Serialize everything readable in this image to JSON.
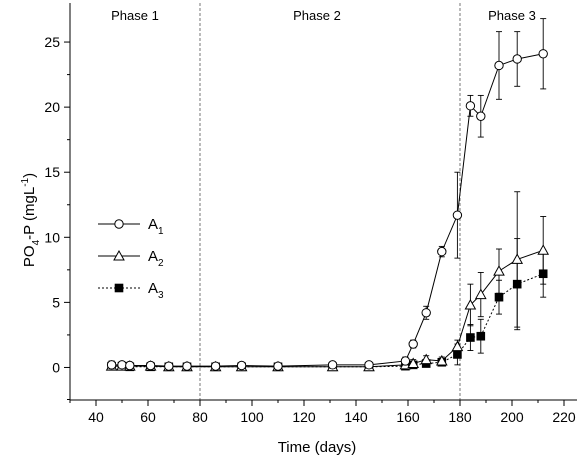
{
  "chart_data": {
    "type": "line",
    "title": "",
    "xlabel": "Time (days)",
    "ylabel": {
      "main": "PO",
      "sub1": "4",
      "mid": "-P (mgL",
      "sup": "-1",
      "end": ")"
    },
    "xlim": [
      30,
      225
    ],
    "ylim": [
      -2.5,
      28
    ],
    "x_ticks": [
      40,
      60,
      80,
      100,
      120,
      140,
      160,
      180,
      200,
      220
    ],
    "y_ticks": [
      0,
      5,
      10,
      15,
      20,
      25
    ],
    "phase_dividers": [
      80,
      180
    ],
    "phases": [
      {
        "label": "Phase 1",
        "x": 55
      },
      {
        "label": "Phase 2",
        "x": 125
      },
      {
        "label": "Phase 3",
        "x": 200
      }
    ],
    "legend": {
      "position": "left-middle",
      "entries": [
        {
          "name": "A",
          "sub": "1",
          "marker": "circle-open",
          "line": "solid"
        },
        {
          "name": "A",
          "sub": "2",
          "marker": "triangle-open",
          "line": "solid"
        },
        {
          "name": "A",
          "sub": "3",
          "marker": "square-filled",
          "line": "dotted"
        }
      ]
    },
    "series": [
      {
        "name": "A1",
        "marker": "circle-open",
        "line": "solid",
        "points": [
          {
            "x": 46,
            "y": 0.2,
            "err": 0.3
          },
          {
            "x": 50,
            "y": 0.2,
            "err": 0.2
          },
          {
            "x": 53,
            "y": 0.15,
            "err": 0.2
          },
          {
            "x": 61,
            "y": 0.15,
            "err": 0.2
          },
          {
            "x": 68,
            "y": 0.1,
            "err": 0.2
          },
          {
            "x": 75,
            "y": 0.1,
            "err": 0.2
          },
          {
            "x": 86,
            "y": 0.1,
            "err": 0.2
          },
          {
            "x": 96,
            "y": 0.15,
            "err": 0.2
          },
          {
            "x": 110,
            "y": 0.1,
            "err": 0.2
          },
          {
            "x": 131,
            "y": 0.2,
            "err": 0.2
          },
          {
            "x": 145,
            "y": 0.2,
            "err": 0.2
          },
          {
            "x": 159,
            "y": 0.5,
            "err": 0.3
          },
          {
            "x": 162,
            "y": 1.8,
            "err": 0.3
          },
          {
            "x": 167,
            "y": 4.2,
            "err": 0.5
          },
          {
            "x": 173,
            "y": 8.9,
            "err": 0.4
          },
          {
            "x": 179,
            "y": 11.7,
            "err": 3.3
          },
          {
            "x": 184,
            "y": 20.1,
            "err": 0.8
          },
          {
            "x": 188,
            "y": 19.3,
            "err": 1.6
          },
          {
            "x": 195,
            "y": 23.2,
            "err": 2.6
          },
          {
            "x": 202,
            "y": 23.7,
            "err": 2.1
          },
          {
            "x": 212,
            "y": 24.1,
            "err": 2.7
          }
        ]
      },
      {
        "name": "A2",
        "marker": "triangle-open",
        "line": "solid",
        "points": [
          {
            "x": 46,
            "y": 0.1,
            "err": 0.2
          },
          {
            "x": 50,
            "y": 0.1,
            "err": 0.2
          },
          {
            "x": 53,
            "y": 0.1,
            "err": 0.2
          },
          {
            "x": 61,
            "y": 0.1,
            "err": 0.2
          },
          {
            "x": 68,
            "y": 0.05,
            "err": 0.2
          },
          {
            "x": 75,
            "y": 0.05,
            "err": 0.2
          },
          {
            "x": 86,
            "y": 0.05,
            "err": 0.2
          },
          {
            "x": 96,
            "y": 0.05,
            "err": 0.2
          },
          {
            "x": 110,
            "y": 0.05,
            "err": 0.2
          },
          {
            "x": 131,
            "y": 0.05,
            "err": 0.2
          },
          {
            "x": 145,
            "y": 0.05,
            "err": 0.2
          },
          {
            "x": 159,
            "y": 0.2,
            "err": 0.3
          },
          {
            "x": 162,
            "y": 0.3,
            "err": 0.3
          },
          {
            "x": 167,
            "y": 0.6,
            "err": 0.3
          },
          {
            "x": 173,
            "y": 0.5,
            "err": 0.3
          },
          {
            "x": 179,
            "y": 1.6,
            "err": 0.5
          },
          {
            "x": 184,
            "y": 4.8,
            "err": 1.6
          },
          {
            "x": 188,
            "y": 5.6,
            "err": 1.7
          },
          {
            "x": 195,
            "y": 7.4,
            "err": 1.7
          },
          {
            "x": 202,
            "y": 8.3,
            "err": 5.2
          },
          {
            "x": 212,
            "y": 9.0,
            "err": 2.6
          }
        ]
      },
      {
        "name": "A3",
        "marker": "square-filled",
        "line": "dotted",
        "points": [
          {
            "x": 46,
            "y": 0.1,
            "err": 0.2
          },
          {
            "x": 50,
            "y": 0.1,
            "err": 0.2
          },
          {
            "x": 53,
            "y": 0.05,
            "err": 0.2
          },
          {
            "x": 61,
            "y": 0.05,
            "err": 0.2
          },
          {
            "x": 68,
            "y": 0.05,
            "err": 0.2
          },
          {
            "x": 75,
            "y": 0.05,
            "err": 0.2
          },
          {
            "x": 86,
            "y": 0.05,
            "err": 0.2
          },
          {
            "x": 96,
            "y": 0.05,
            "err": 0.2
          },
          {
            "x": 110,
            "y": 0.05,
            "err": 0.2
          },
          {
            "x": 131,
            "y": 0.05,
            "err": 0.2
          },
          {
            "x": 145,
            "y": 0.05,
            "err": 0.2
          },
          {
            "x": 159,
            "y": 0.1,
            "err": 0.2
          },
          {
            "x": 162,
            "y": 0.2,
            "err": 0.2
          },
          {
            "x": 167,
            "y": 0.3,
            "err": 0.2
          },
          {
            "x": 173,
            "y": 0.4,
            "err": 0.2
          },
          {
            "x": 179,
            "y": 1.0,
            "err": 0.8
          },
          {
            "x": 184,
            "y": 2.3,
            "err": 1.0
          },
          {
            "x": 188,
            "y": 2.4,
            "err": 1.3
          },
          {
            "x": 195,
            "y": 5.4,
            "err": 1.3
          },
          {
            "x": 202,
            "y": 6.4,
            "err": 3.5
          },
          {
            "x": 212,
            "y": 7.2,
            "err": 1.8
          }
        ]
      }
    ]
  }
}
